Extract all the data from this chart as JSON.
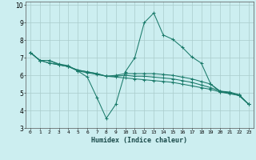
{
  "xlabel": "Humidex (Indice chaleur)",
  "bg_color": "#cceef0",
  "grid_color": "#aacccc",
  "line_color": "#1a7a6a",
  "xlim": [
    -0.5,
    23.5
  ],
  "ylim": [
    3,
    10.2
  ],
  "xticks": [
    0,
    1,
    2,
    3,
    4,
    5,
    6,
    7,
    8,
    9,
    10,
    11,
    12,
    13,
    14,
    15,
    16,
    17,
    18,
    19,
    20,
    21,
    22,
    23
  ],
  "yticks": [
    3,
    4,
    5,
    6,
    7,
    8,
    9,
    10
  ],
  "series": [
    [
      7.3,
      6.85,
      6.85,
      6.65,
      6.55,
      6.25,
      5.9,
      4.75,
      3.55,
      4.35,
      6.2,
      7.0,
      9.0,
      9.55,
      8.3,
      8.05,
      7.6,
      7.05,
      6.7,
      5.5,
      5.05,
      5.0,
      4.85,
      4.35
    ],
    [
      7.3,
      6.85,
      6.85,
      6.6,
      6.5,
      6.25,
      6.15,
      6.05,
      5.95,
      6.0,
      6.1,
      6.1,
      6.1,
      6.1,
      6.05,
      6.0,
      5.9,
      5.8,
      5.65,
      5.5,
      5.1,
      5.05,
      4.9,
      4.35
    ],
    [
      7.3,
      6.85,
      6.7,
      6.6,
      6.5,
      6.3,
      6.2,
      6.1,
      5.95,
      5.95,
      6.0,
      5.95,
      5.95,
      5.9,
      5.85,
      5.8,
      5.7,
      5.6,
      5.45,
      5.3,
      5.1,
      5.0,
      4.85,
      4.35
    ],
    [
      7.3,
      6.85,
      6.7,
      6.6,
      6.5,
      6.3,
      6.2,
      6.1,
      5.95,
      5.9,
      5.85,
      5.8,
      5.75,
      5.7,
      5.65,
      5.6,
      5.5,
      5.4,
      5.3,
      5.2,
      5.05,
      4.95,
      4.85,
      4.35
    ]
  ]
}
